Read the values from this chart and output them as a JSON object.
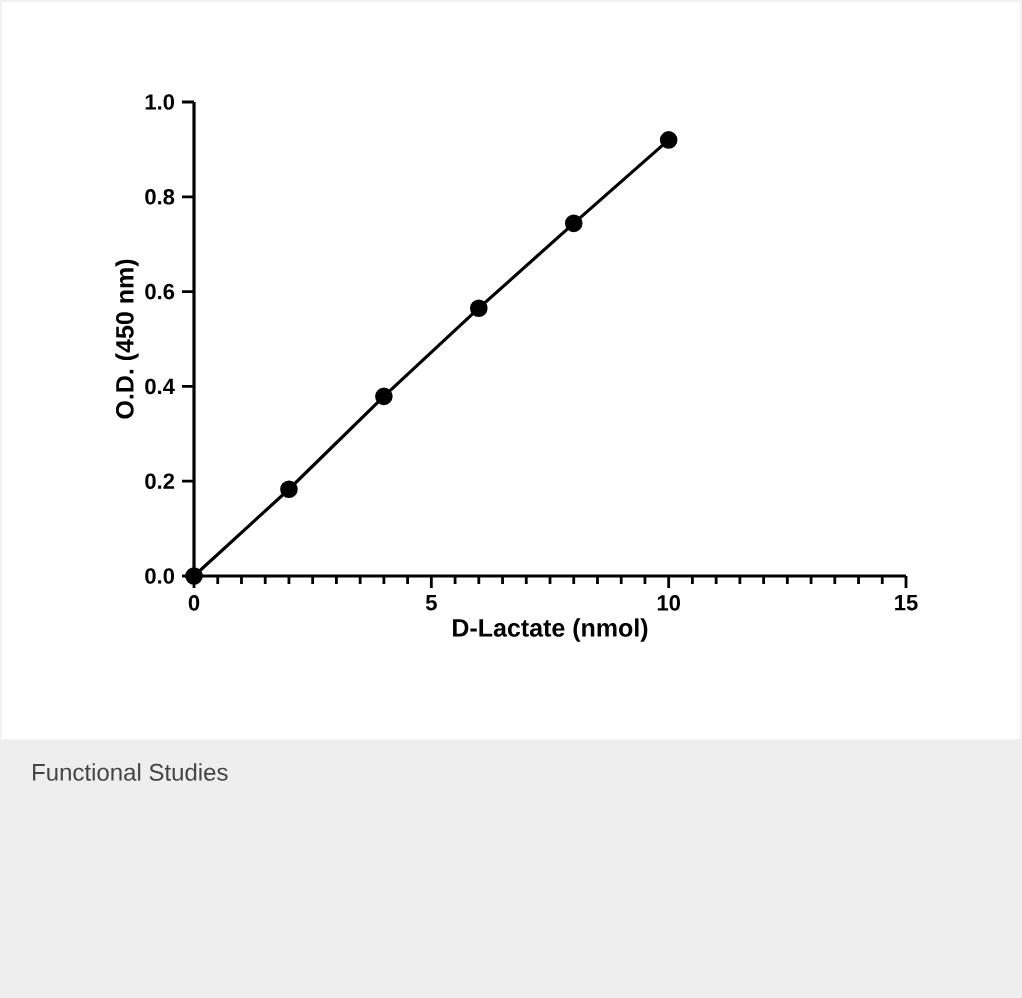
{
  "chart_data": {
    "type": "line",
    "xlabel": "D-Lactate (nmol)",
    "ylabel": "O.D. (450 nm)",
    "x": [
      0,
      2,
      4,
      6,
      8,
      10
    ],
    "series": [
      {
        "color": "#000000",
        "values": [
          0,
          0.183,
          0.379,
          0.565,
          0.744,
          0.92
        ]
      }
    ],
    "xlim": [
      0,
      15
    ],
    "ylim": [
      0,
      1.0
    ],
    "xticks": [
      0,
      5,
      10,
      15
    ],
    "yticks": [
      {
        "value": 0,
        "label": "0.0"
      },
      {
        "value": 0.2,
        "label": "0.2"
      },
      {
        "value": 0.4,
        "label": "0.4"
      },
      {
        "value": 0.6,
        "label": "0.6"
      },
      {
        "value": 0.8,
        "label": "0.8"
      },
      {
        "value": 1.0,
        "label": "1.0"
      }
    ],
    "marker": "circle",
    "line_style": "solid",
    "annotations": [
      "Functional Studies"
    ]
  }
}
